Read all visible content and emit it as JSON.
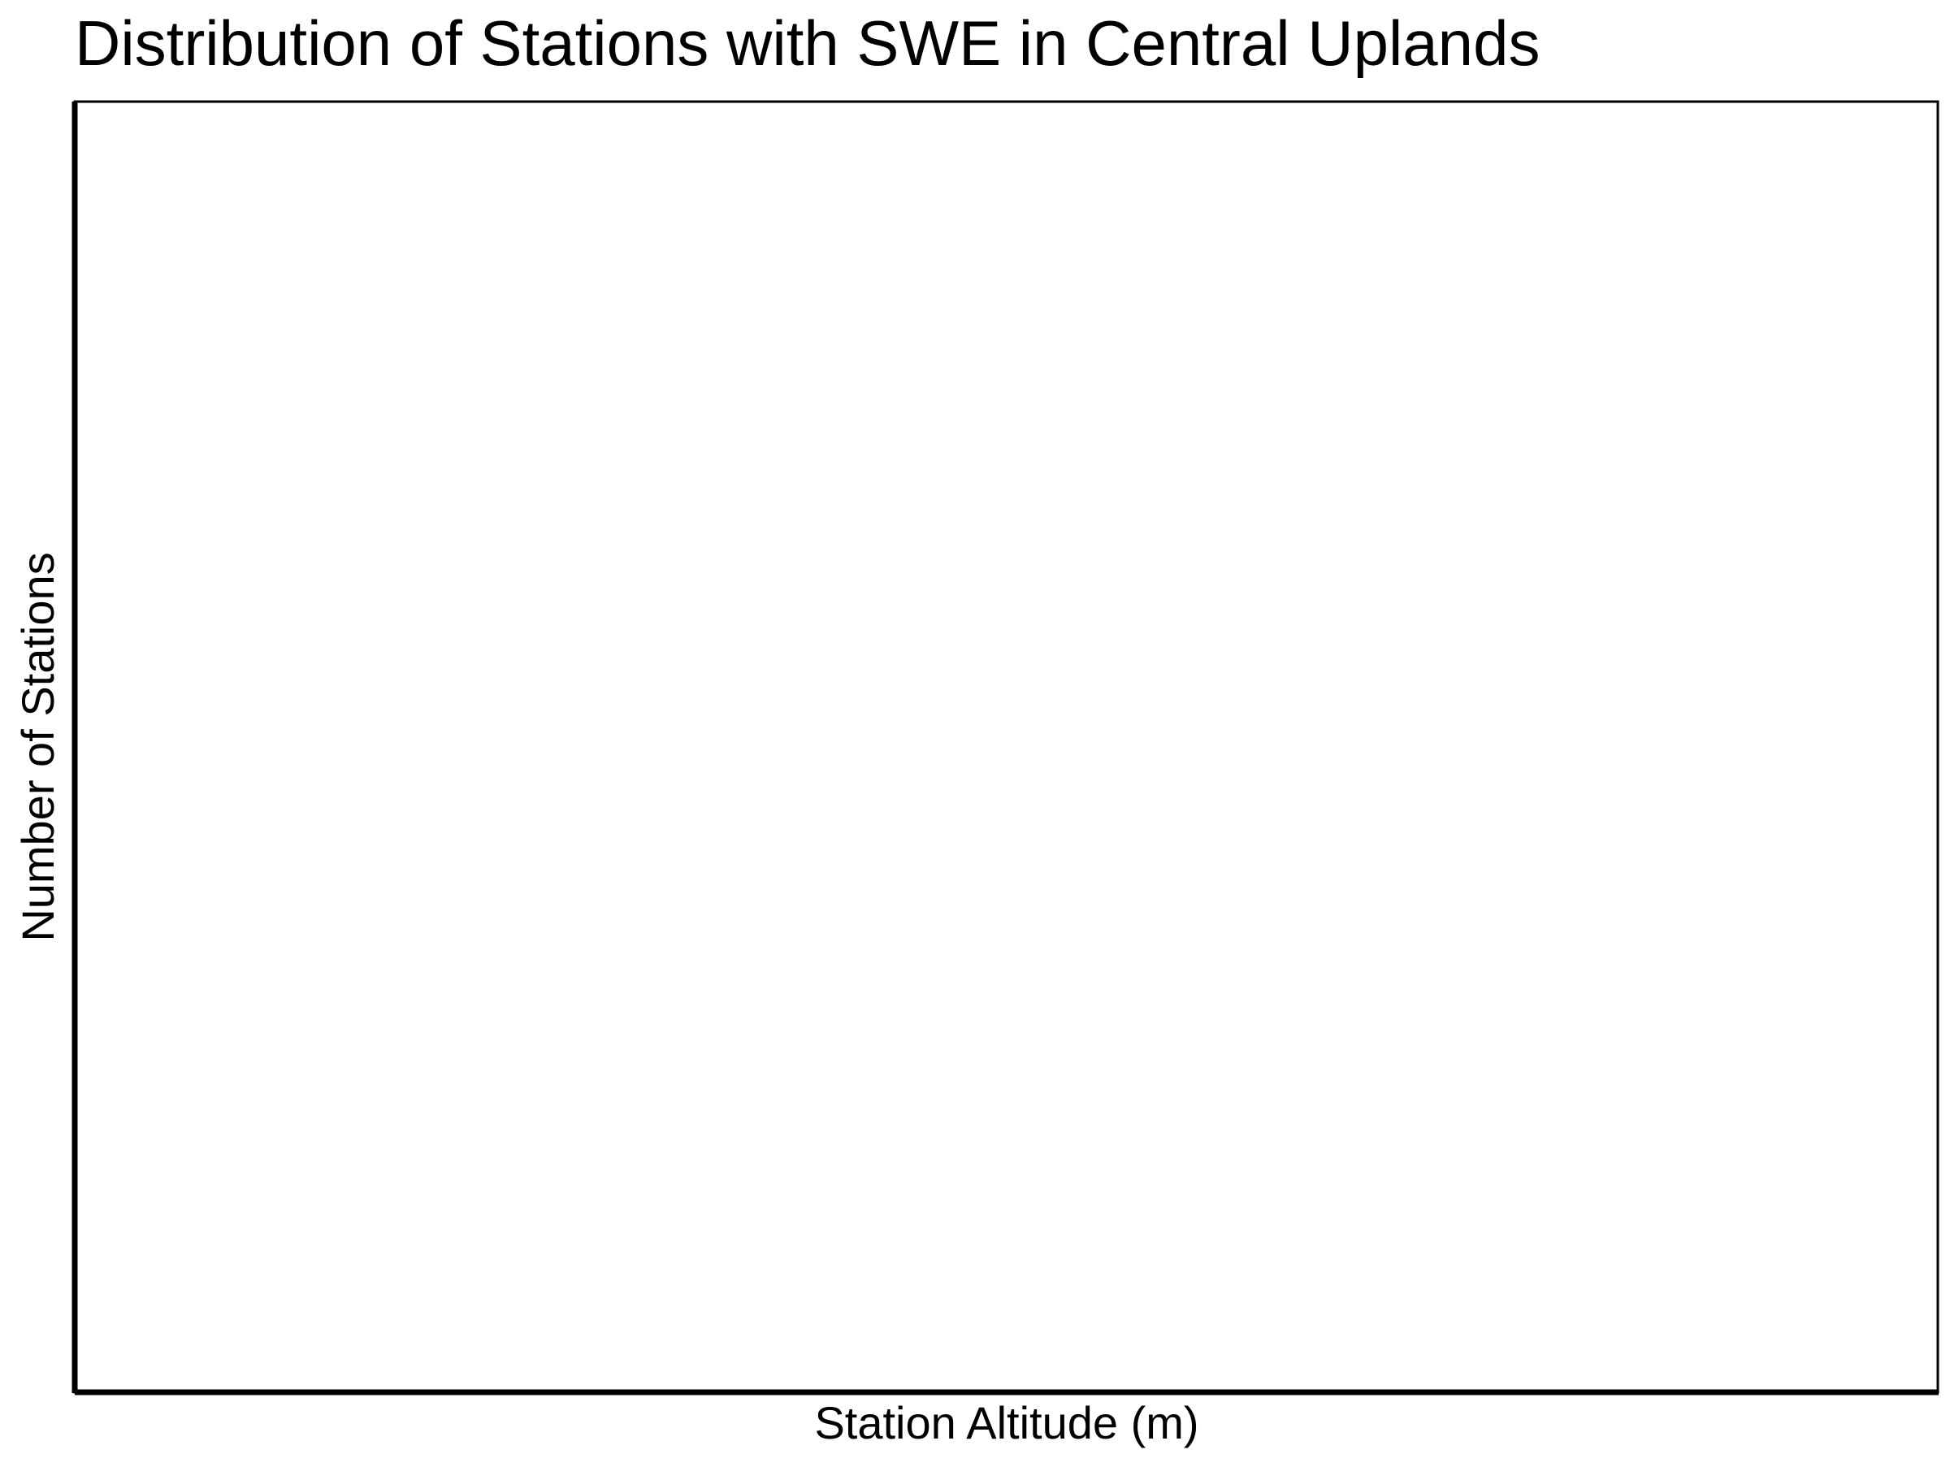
{
  "chart_data": {
    "type": "bar",
    "title": "Distribution of Stations with SWE in Central Uplands",
    "xlabel": "Station Altitude (m)",
    "ylabel": "Number of Stations",
    "categories": [],
    "values": [],
    "grid": false,
    "legend": "none"
  },
  "colors": {
    "background": "#ffffff",
    "axis": "#000000",
    "text": "#000000"
  }
}
